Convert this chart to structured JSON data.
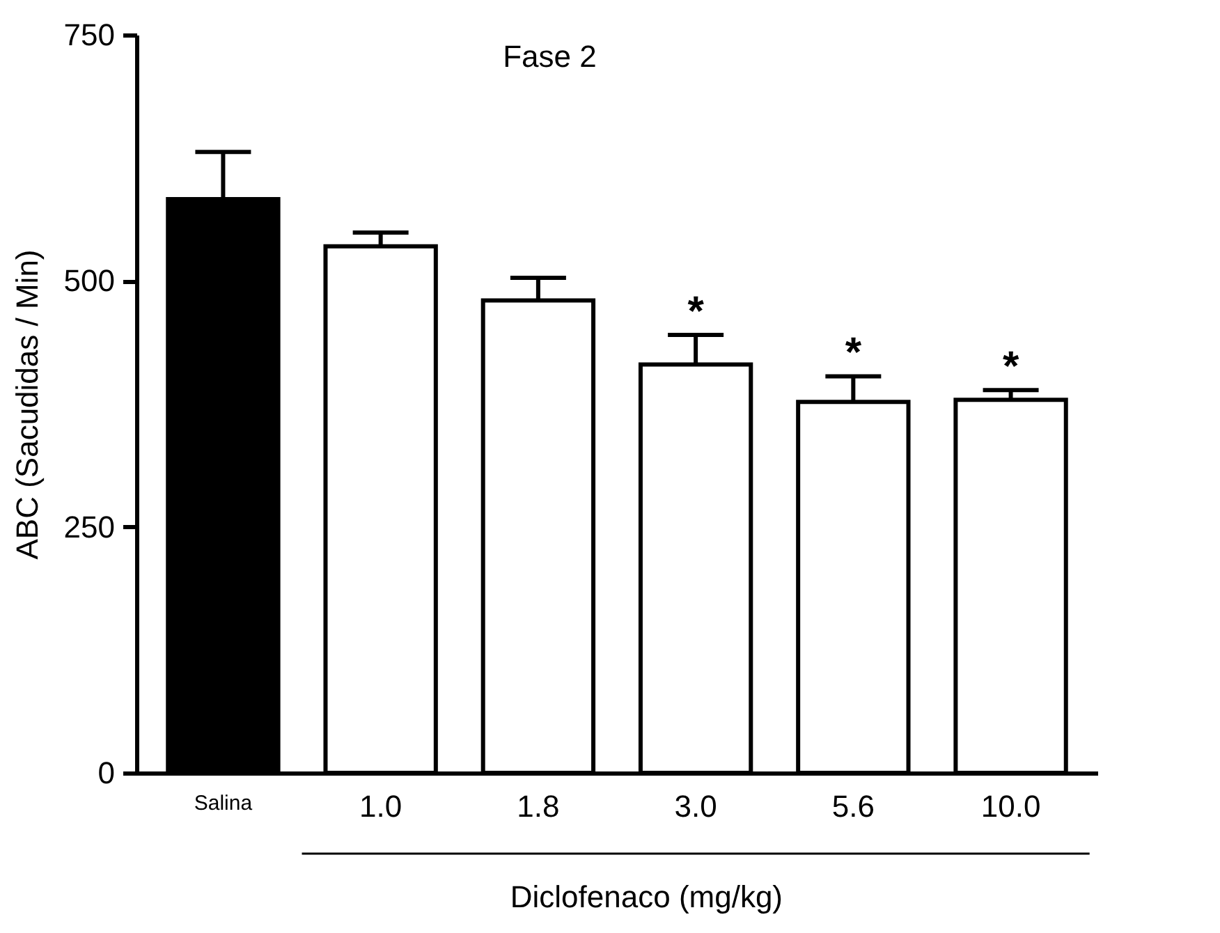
{
  "chart_data": {
    "type": "bar",
    "title": "Fase 2",
    "xlabel": "Diclofenaco (mg/kg)",
    "ylabel": "ABC (Sacudidas / Min)",
    "categories": [
      "Salina",
      "1.0",
      "1.8",
      "3.0",
      "5.6",
      "10.0"
    ],
    "values": [
      583,
      535,
      480,
      415,
      377,
      379
    ],
    "colors": [
      "#000000",
      "#ffffff",
      "#ffffff",
      "#ffffff",
      "#ffffff",
      "#ffffff"
    ],
    "errors": [
      [
        583,
        631
      ],
      [
        535,
        549
      ],
      [
        480,
        503
      ],
      [
        415,
        445
      ],
      [
        377,
        403
      ],
      [
        379,
        389
      ]
    ],
    "ylim": [
      0,
      750
    ],
    "yticks": [
      0,
      250,
      500,
      750
    ],
    "grid": false,
    "annotations": [
      {
        "text": "*",
        "x": "3.0",
        "y": 445
      },
      {
        "text": "*",
        "x": "5.6",
        "y": 403
      },
      {
        "text": "*",
        "x": "10.0",
        "y": 389
      }
    ]
  }
}
